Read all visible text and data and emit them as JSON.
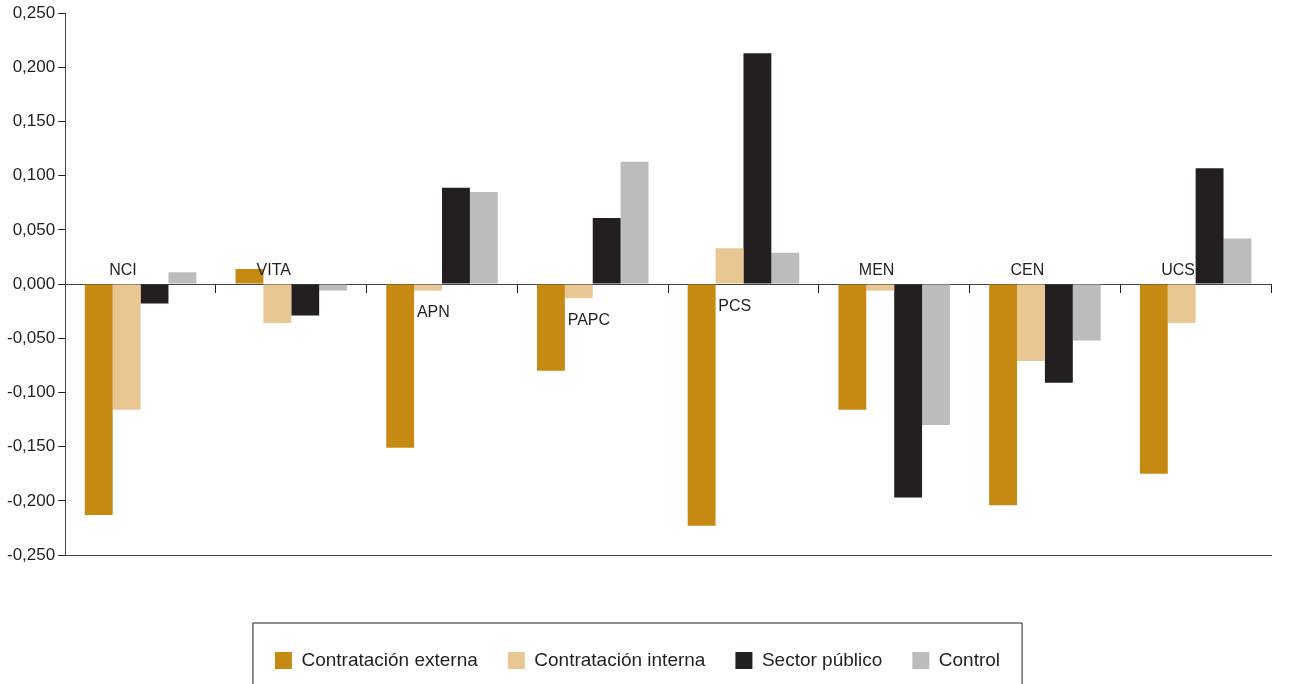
{
  "chart_data": {
    "type": "bar",
    "categories": [
      "NCI",
      "VITA",
      "APN",
      "PAPC",
      "PCS",
      "MEN",
      "CEN",
      "UCS"
    ],
    "series": [
      {
        "name": "Contratación externa",
        "color": "#c68912",
        "values": [
          -0.213,
          0.014,
          -0.151,
          -0.08,
          -0.223,
          -0.116,
          -0.204,
          -0.175
        ]
      },
      {
        "name": "Contratación interna",
        "color": "#e8c793",
        "values": [
          -0.116,
          -0.036,
          -0.006,
          -0.013,
          0.033,
          -0.006,
          -0.071,
          -0.036
        ]
      },
      {
        "name": "Sector público",
        "color": "#231f20",
        "values": [
          -0.018,
          -0.029,
          0.089,
          0.061,
          0.213,
          -0.197,
          -0.091,
          0.107
        ]
      },
      {
        "name": "Control",
        "color": "#bbbcbe",
        "values": [
          0.011,
          -0.006,
          0.085,
          0.113,
          0.029,
          -0.13,
          -0.052,
          0.042
        ]
      }
    ],
    "ylim": [
      -0.25,
      0.25
    ],
    "yticks": [
      {
        "value": -0.25,
        "label": "-0,250"
      },
      {
        "value": -0.2,
        "label": "-0,200"
      },
      {
        "value": -0.15,
        "label": "-0,150"
      },
      {
        "value": -0.1,
        "label": "-0,100"
      },
      {
        "value": -0.05,
        "label": "-0,050"
      },
      {
        "value": 0,
        "label": "0,000"
      },
      {
        "value": 0.05,
        "label": "0,050"
      },
      {
        "value": 0.1,
        "label": "0,100"
      },
      {
        "value": 0.15,
        "label": "0,150"
      },
      {
        "value": 0.2,
        "label": "0,200"
      },
      {
        "value": 0.25,
        "label": "0,250"
      }
    ],
    "grid": false,
    "legend": "bottom"
  }
}
